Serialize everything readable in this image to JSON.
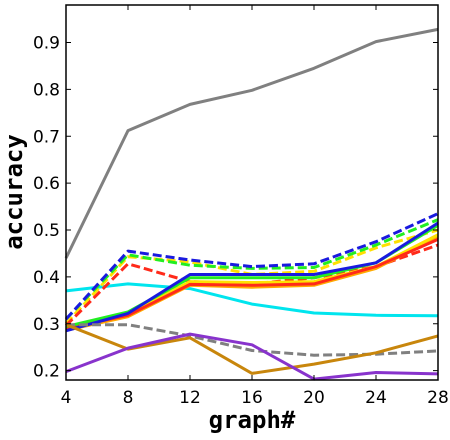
{
  "chart_data": {
    "type": "line",
    "title": "",
    "xlabel": "graph#",
    "ylabel": "accuracy",
    "x": [
      4,
      8,
      12,
      16,
      20,
      24,
      28
    ],
    "xlim": [
      4,
      28
    ],
    "ylim": [
      0.18,
      0.98
    ],
    "xticks": [
      "4",
      "8",
      "12",
      "16",
      "20",
      "24",
      "28"
    ],
    "yticks": [
      "0.2",
      "0.3",
      "0.4",
      "0.5",
      "0.6",
      "0.7",
      "0.8",
      "0.9"
    ],
    "yticks_values": [
      0.2,
      0.3,
      0.4,
      0.5,
      0.6,
      0.7,
      0.8,
      0.9
    ],
    "grid": false,
    "series": [
      {
        "color": "#808080",
        "dash": "solid",
        "values": [
          0.44,
          0.712,
          0.768,
          0.798,
          0.845,
          0.902,
          0.928
        ]
      },
      {
        "color": "#00e5ee",
        "dash": "solid",
        "values": [
          0.37,
          0.385,
          0.375,
          0.342,
          0.323,
          0.318,
          0.317
        ]
      },
      {
        "color": "#ffe000",
        "dash": "dashed",
        "values": [
          0.3,
          0.443,
          0.432,
          0.405,
          0.412,
          0.462,
          0.5
        ]
      },
      {
        "color": "#ff2a1a",
        "dash": "dashed",
        "values": [
          0.296,
          0.428,
          0.39,
          0.385,
          0.398,
          0.422,
          0.468
        ]
      },
      {
        "color": "#22ee22",
        "dash": "dashed",
        "values": [
          0.31,
          0.447,
          0.425,
          0.418,
          0.42,
          0.468,
          0.522
        ]
      },
      {
        "color": "#1a1adf",
        "dash": "dashed",
        "values": [
          0.31,
          0.455,
          0.436,
          0.422,
          0.428,
          0.475,
          0.535
        ]
      },
      {
        "color": "#ffaa00",
        "dash": "solid",
        "values": [
          0.286,
          0.315,
          0.382,
          0.378,
          0.382,
          0.418,
          0.485
        ]
      },
      {
        "color": "#ffe000",
        "dash": "solid",
        "values": [
          0.288,
          0.32,
          0.39,
          0.388,
          0.39,
          0.422,
          0.49
        ]
      },
      {
        "color": "#ff2a1a",
        "dash": "solid",
        "values": [
          0.29,
          0.318,
          0.384,
          0.382,
          0.385,
          0.422,
          0.48
        ]
      },
      {
        "color": "#22ee22",
        "dash": "solid",
        "values": [
          0.294,
          0.325,
          0.398,
          0.398,
          0.398,
          0.43,
          0.51
        ]
      },
      {
        "color": "#1a1adf",
        "dash": "solid",
        "values": [
          0.285,
          0.322,
          0.405,
          0.405,
          0.405,
          0.43,
          0.515
        ]
      },
      {
        "color": "#808080",
        "dash": "dashed",
        "values": [
          0.298,
          0.298,
          0.274,
          0.243,
          0.233,
          0.235,
          0.242
        ]
      },
      {
        "color": "#c8860c",
        "dash": "solid",
        "values": [
          0.298,
          0.246,
          0.27,
          0.194,
          0.214,
          0.238,
          0.274
        ]
      },
      {
        "color": "#8833cc",
        "dash": "solid",
        "values": [
          0.198,
          0.248,
          0.278,
          0.255,
          0.182,
          0.196,
          0.193
        ]
      }
    ]
  }
}
